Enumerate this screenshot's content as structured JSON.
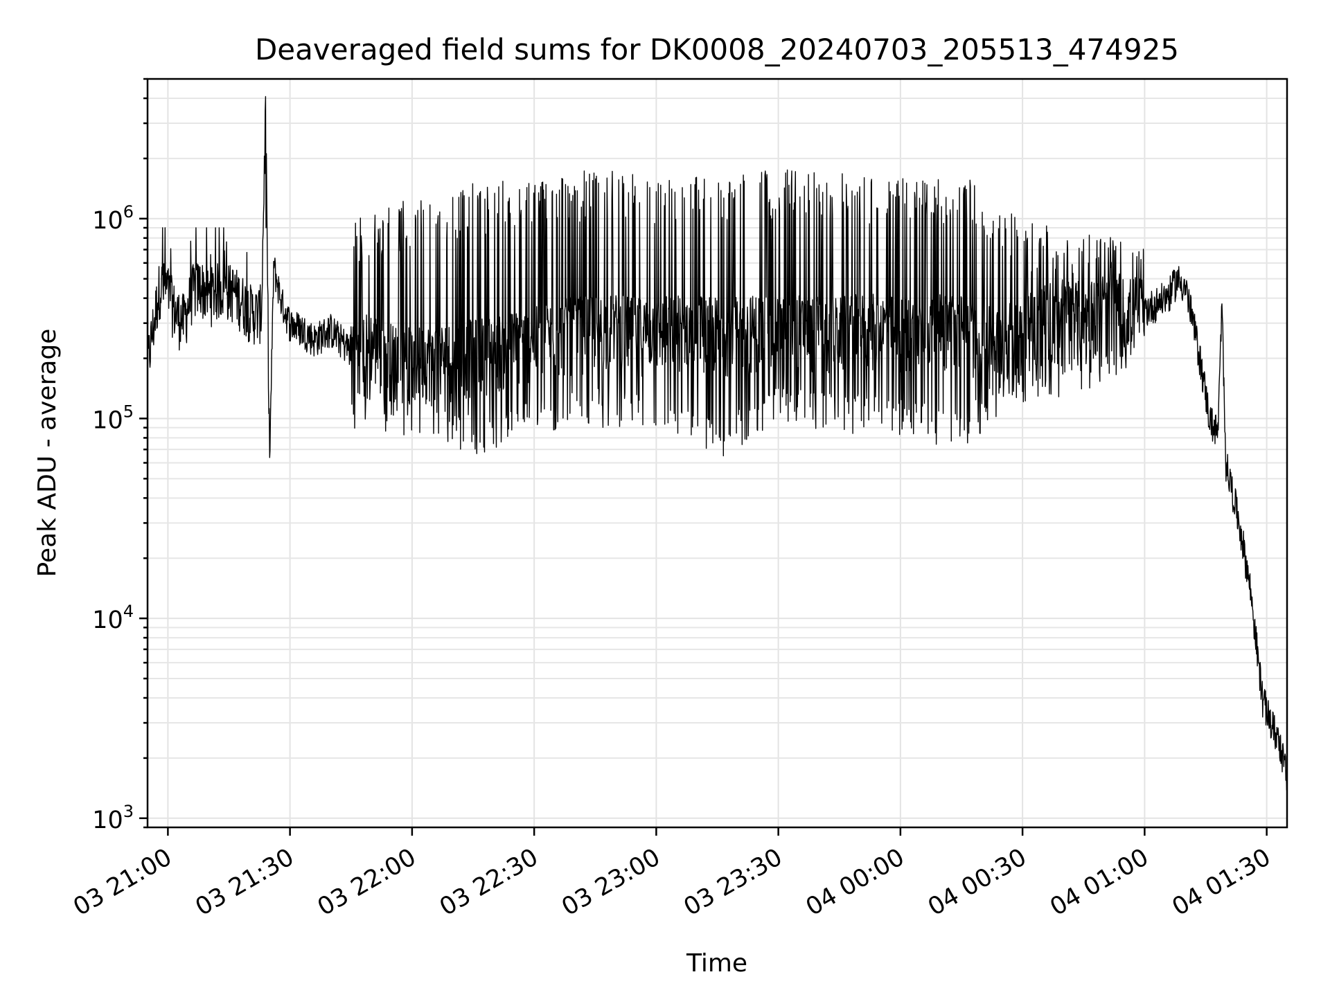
{
  "chart_data": {
    "type": "line",
    "title": "Deaveraged field sums for DK0008_20240703_205513_474925",
    "xlabel": "Time",
    "ylabel": "Peak ADU - average",
    "yscale": "log",
    "ylim": [
      900,
      5000000
    ],
    "xlim": [
      "2024-07-03 20:55",
      "2024-07-04 01:35"
    ],
    "grid": true,
    "x_ticks": [
      "03 21:00",
      "03 21:30",
      "03 22:00",
      "03 22:30",
      "03 23:00",
      "03 23:30",
      "04 00:00",
      "04 00:30",
      "04 01:00",
      "04 01:30"
    ],
    "y_ticks": [
      {
        "base": "10",
        "exp": "3",
        "value": 1000
      },
      {
        "base": "10",
        "exp": "4",
        "value": 10000
      },
      {
        "base": "10",
        "exp": "5",
        "value": 100000
      },
      {
        "base": "10",
        "exp": "6",
        "value": 1000000
      }
    ],
    "series": [
      {
        "color": "#000000",
        "points": [
          [
            "2024-07-03 20:55",
            180000
          ],
          [
            "2024-07-03 20:58",
            450000
          ],
          [
            "2024-07-03 21:00",
            420000
          ],
          [
            "2024-07-03 21:02",
            320000
          ],
          [
            "2024-07-03 21:04",
            300000
          ],
          [
            "2024-07-03 21:06",
            420000
          ],
          [
            "2024-07-03 21:08",
            450000
          ],
          [
            "2024-07-03 21:10",
            400000
          ],
          [
            "2024-07-03 21:13",
            440000
          ],
          [
            "2024-07-03 21:16",
            420000
          ],
          [
            "2024-07-03 21:18",
            380000
          ],
          [
            "2024-07-03 21:20",
            340000
          ],
          [
            "2024-07-03 21:22",
            320000
          ],
          [
            "2024-07-03 21:23",
            340000
          ],
          [
            "2024-07-03 21:24",
            3400000
          ],
          [
            "2024-07-03 21:25",
            60000
          ],
          [
            "2024-07-03 21:26",
            580000
          ],
          [
            "2024-07-03 21:28",
            380000
          ],
          [
            "2024-07-03 21:30",
            300000
          ],
          [
            "2024-07-03 21:33",
            280000
          ],
          [
            "2024-07-03 21:36",
            250000
          ],
          [
            "2024-07-03 21:40",
            280000
          ],
          [
            "2024-07-03 21:45",
            220000
          ],
          [
            "2024-07-03 21:50",
            230000
          ],
          [
            "2024-07-03 21:55",
            200000
          ],
          [
            "2024-07-03 22:00",
            190000
          ],
          [
            "2024-07-03 22:05",
            200000
          ],
          [
            "2024-07-03 22:10",
            200000
          ],
          [
            "2024-07-03 22:15",
            210000
          ],
          [
            "2024-07-03 22:20",
            220000
          ],
          [
            "2024-07-03 22:25",
            230000
          ],
          [
            "2024-07-03 22:30",
            240000
          ],
          [
            "2024-07-03 22:35",
            260000
          ],
          [
            "2024-07-03 22:40",
            270000
          ],
          [
            "2024-07-03 22:45",
            280000
          ],
          [
            "2024-07-03 22:50",
            280000
          ],
          [
            "2024-07-03 22:55",
            270000
          ],
          [
            "2024-07-03 23:00",
            270000
          ],
          [
            "2024-07-03 23:05",
            280000
          ],
          [
            "2024-07-03 23:10",
            280000
          ],
          [
            "2024-07-03 23:15",
            270000
          ],
          [
            "2024-07-03 23:20",
            270000
          ],
          [
            "2024-07-03 23:25",
            280000
          ],
          [
            "2024-07-03 23:30",
            280000
          ],
          [
            "2024-07-03 23:35",
            280000
          ],
          [
            "2024-07-03 23:40",
            270000
          ],
          [
            "2024-07-03 23:45",
            270000
          ],
          [
            "2024-07-03 23:50",
            280000
          ],
          [
            "2024-07-03 23:55",
            280000
          ],
          [
            "2024-07-04 00:00",
            270000
          ],
          [
            "2024-07-04 00:05",
            270000
          ],
          [
            "2024-07-04 00:10",
            280000
          ],
          [
            "2024-07-04 00:15",
            280000
          ],
          [
            "2024-07-04 00:20",
            250000
          ],
          [
            "2024-07-04 00:25",
            230000
          ],
          [
            "2024-07-04 00:30",
            300000
          ],
          [
            "2024-07-04 00:35",
            320000
          ],
          [
            "2024-07-04 00:40",
            340000
          ],
          [
            "2024-07-04 00:45",
            320000
          ],
          [
            "2024-07-04 00:50",
            330000
          ],
          [
            "2024-07-04 00:55",
            340000
          ],
          [
            "2024-07-04 01:00",
            350000
          ],
          [
            "2024-07-04 01:03",
            380000
          ],
          [
            "2024-07-04 01:06",
            420000
          ],
          [
            "2024-07-04 01:08",
            500000
          ],
          [
            "2024-07-04 01:10",
            460000
          ],
          [
            "2024-07-04 01:12",
            300000
          ],
          [
            "2024-07-04 01:14",
            180000
          ],
          [
            "2024-07-04 01:16",
            100000
          ],
          [
            "2024-07-04 01:18",
            85000
          ],
          [
            "2024-07-04 01:19",
            360000
          ],
          [
            "2024-07-04 01:20",
            60000
          ],
          [
            "2024-07-04 01:22",
            40000
          ],
          [
            "2024-07-04 01:24",
            25000
          ],
          [
            "2024-07-04 01:26",
            14000
          ],
          [
            "2024-07-04 01:28",
            6000
          ],
          [
            "2024-07-04 01:29",
            4000
          ],
          [
            "2024-07-04 01:31",
            3000
          ],
          [
            "2024-07-04 01:33",
            2500
          ],
          [
            "2024-07-04 01:35",
            1600
          ]
        ],
        "spike_band": {
          "note_free": true,
          "ranges": [
            [
              "2024-07-03 21:45",
              1000000,
              90000
            ],
            [
              "2024-07-03 22:00",
              1300000,
              80000
            ],
            [
              "2024-07-03 22:15",
              1500000,
              65000
            ],
            [
              "2024-07-03 22:30",
              1600000,
              80000
            ],
            [
              "2024-07-03 22:45",
              1800000,
              90000
            ],
            [
              "2024-07-03 23:00",
              1600000,
              80000
            ],
            [
              "2024-07-03 23:15",
              1700000,
              60000
            ],
            [
              "2024-07-03 23:30",
              1800000,
              90000
            ],
            [
              "2024-07-03 23:45",
              1700000,
              85000
            ],
            [
              "2024-07-04 00:00",
              1600000,
              80000
            ],
            [
              "2024-07-04 00:15",
              1700000,
              70000
            ],
            [
              "2024-07-04 00:30",
              1000000,
              120000
            ],
            [
              "2024-07-04 00:45",
              900000,
              130000
            ],
            [
              "2024-07-04 01:00",
              700000,
              200000
            ]
          ]
        }
      }
    ]
  }
}
